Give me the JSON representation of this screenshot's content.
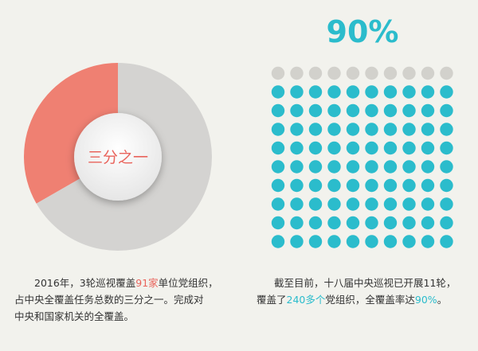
{
  "chart_data": [
    {
      "type": "pie",
      "style": "donut",
      "slices": [
        {
          "value": 33.3,
          "color": "#ef8072"
        },
        {
          "value": 66.7,
          "color": "#d4d3d1"
        }
      ],
      "center_label": "三分之一"
    },
    {
      "type": "dot-grid",
      "rows": 10,
      "cols": 10,
      "filled_percent": 90,
      "title": "90%",
      "filled_color": "#2bbccc",
      "empty_color": "#d2d1cc"
    }
  ],
  "left_text": {
    "p1": "2016年，3轮巡视覆盖",
    "highlight": "91家",
    "p2": "单位党组织，",
    "line2": "占中央全覆盖任务总数的三分之一。完成对",
    "line3": "中央和国家机关的全覆盖。"
  },
  "right_text": {
    "line1": "截至目前，十八届中央巡视已开展11轮，",
    "p1": "覆盖了",
    "h1": "240多个",
    "p2": "党组织，全覆盖率达",
    "h2": "90%",
    "p3": "。"
  }
}
